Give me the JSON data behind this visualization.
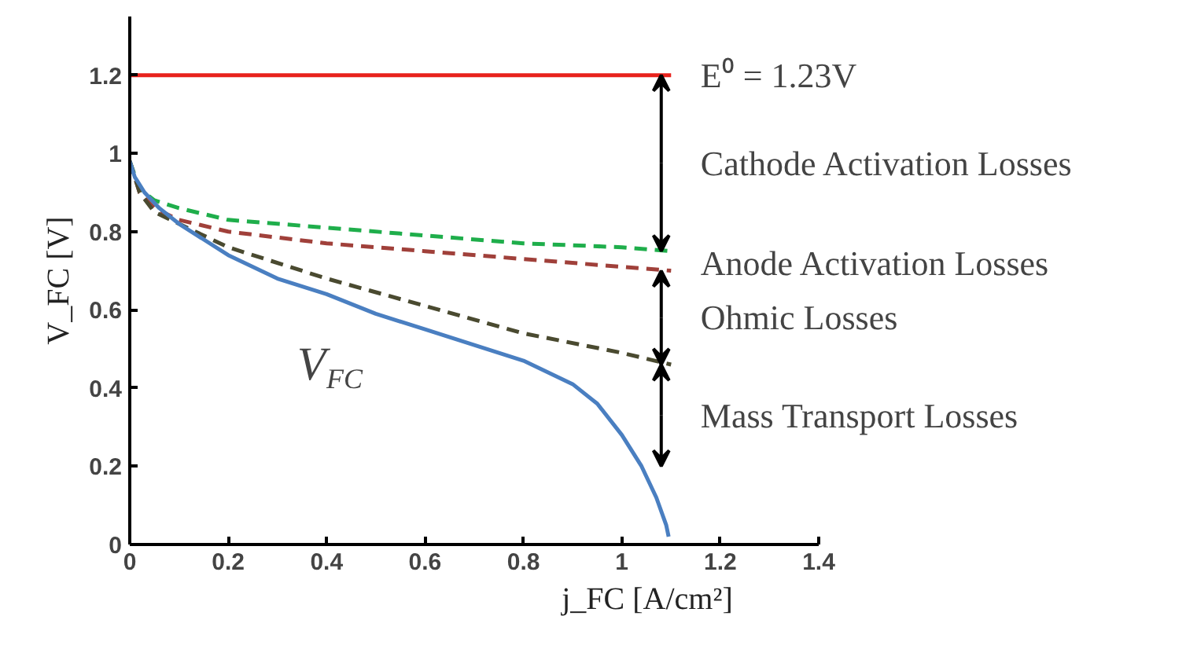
{
  "chart_data": {
    "type": "line",
    "xlabel": "j_FC [A/cm²]",
    "ylabel": "V_FC [V]",
    "xlim": [
      0,
      1.4
    ],
    "ylim": [
      0,
      1.35
    ],
    "xticks": [
      0,
      0.2,
      0.4,
      0.6,
      0.8,
      1,
      1.2,
      1.4
    ],
    "yticks": [
      0,
      0.2,
      0.4,
      0.6,
      0.8,
      1,
      1.2
    ],
    "grid": false,
    "marker": "none",
    "series": [
      {
        "color": "#e8221c",
        "line_style": "solid",
        "x": [
          0,
          1.1
        ],
        "values": [
          1.2,
          1.2
        ]
      },
      {
        "color": "#1fae4b",
        "line_style": "dashed",
        "x": [
          0,
          0.02,
          0.05,
          0.1,
          0.2,
          0.4,
          0.6,
          0.8,
          1.0,
          1.1
        ],
        "values": [
          0.98,
          0.91,
          0.88,
          0.86,
          0.83,
          0.81,
          0.79,
          0.77,
          0.76,
          0.75
        ]
      },
      {
        "color": "#a0403a",
        "line_style": "dashed",
        "x": [
          0,
          0.02,
          0.05,
          0.1,
          0.2,
          0.4,
          0.6,
          0.8,
          1.0,
          1.1
        ],
        "values": [
          0.98,
          0.9,
          0.86,
          0.83,
          0.8,
          0.77,
          0.75,
          0.73,
          0.71,
          0.7
        ]
      },
      {
        "color": "#4a4a30",
        "line_style": "dashed",
        "x": [
          0,
          0.02,
          0.05,
          0.1,
          0.2,
          0.4,
          0.6,
          0.8,
          1.0,
          1.1
        ],
        "values": [
          0.98,
          0.9,
          0.85,
          0.82,
          0.76,
          0.68,
          0.61,
          0.54,
          0.49,
          0.46
        ]
      },
      {
        "color": "#4a7fc1",
        "line_style": "solid",
        "x": [
          0,
          0.01,
          0.03,
          0.06,
          0.1,
          0.2,
          0.3,
          0.4,
          0.5,
          0.6,
          0.7,
          0.8,
          0.9,
          0.95,
          1.0,
          1.04,
          1.07,
          1.09,
          1.095
        ],
        "values": [
          0.98,
          0.94,
          0.9,
          0.86,
          0.82,
          0.74,
          0.68,
          0.64,
          0.59,
          0.55,
          0.51,
          0.47,
          0.41,
          0.36,
          0.28,
          0.2,
          0.12,
          0.05,
          0.02
        ]
      }
    ],
    "annotations": [
      "E⁰ = 1.23V",
      {
        "text": "Cathode Activation Losses",
        "x": 1.1,
        "y": 0.75
      },
      "Anode Activation Losses",
      "Ohmic Losses",
      "Mass Transport Losses",
      "V$_{FC}$"
    ]
  }
}
